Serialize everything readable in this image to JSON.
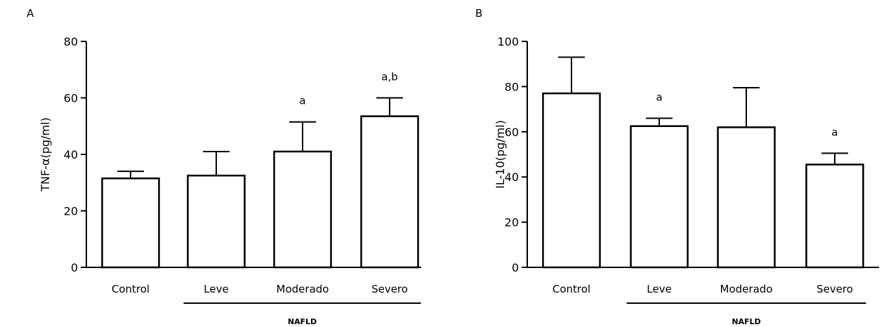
{
  "chart_data": [
    {
      "type": "bar",
      "panel_label": "A",
      "ylabel": "TNF-α(pg/ml)",
      "ylim": [
        0,
        80
      ],
      "yticks": [
        "0",
        "20",
        "40",
        "60",
        "80"
      ],
      "ytick_values": [
        0,
        20,
        40,
        60,
        80
      ],
      "categories": [
        "Control",
        "Leve",
        "Moderado",
        "Severo"
      ],
      "values": [
        31.5,
        32.5,
        41,
        53.5
      ],
      "errors": [
        2.5,
        8.5,
        10.5,
        6.5
      ],
      "annotations": [
        "",
        "",
        "a",
        "a,b"
      ],
      "group_label": "NAFLD",
      "group_span": [
        "Leve",
        "Severo"
      ]
    },
    {
      "type": "bar",
      "panel_label": "B",
      "ylabel": "IL-10(pg/ml)",
      "ylim": [
        0,
        100
      ],
      "yticks": [
        "0",
        "20",
        "40",
        "60",
        "80",
        "100"
      ],
      "ytick_values": [
        0,
        20,
        40,
        60,
        80,
        100
      ],
      "categories": [
        "Control",
        "Leve",
        "Moderado",
        "Severo"
      ],
      "values": [
        77,
        62.5,
        62,
        45.5
      ],
      "errors": [
        16,
        3.5,
        17.5,
        5
      ],
      "annotations": [
        "",
        "a",
        "",
        "a"
      ],
      "group_label": "NAFLD",
      "group_span": [
        "Leve",
        "Severo"
      ]
    }
  ]
}
